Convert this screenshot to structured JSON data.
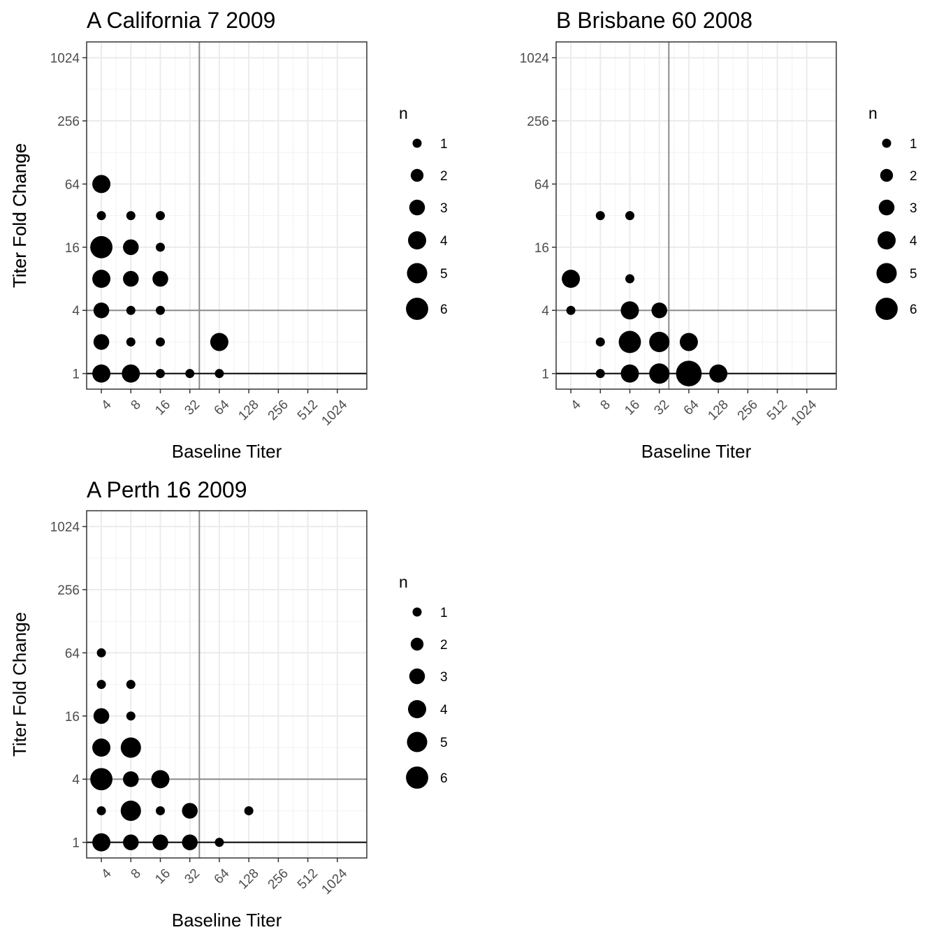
{
  "chart_data": [
    {
      "type": "scatter",
      "title": "A California 7 2009",
      "xlabel": "Baseline Titer",
      "ylabel": "Titer Fold Change",
      "scale": "log2",
      "x_ticks": [
        4,
        8,
        16,
        32,
        64,
        128,
        256,
        512,
        1024
      ],
      "y_ticks": [
        1,
        4,
        16,
        64,
        256,
        1024
      ],
      "xlim": [
        2.83,
        2048
      ],
      "ylim": [
        0.71,
        1448
      ],
      "reference_lines": {
        "vertical_x": 40,
        "horizontal_y": 4,
        "baseline_y": 1
      },
      "grid": true,
      "size_variable": "n",
      "points": [
        {
          "x": 4,
          "y": 64,
          "n": 4
        },
        {
          "x": 4,
          "y": 32,
          "n": 1
        },
        {
          "x": 8,
          "y": 32,
          "n": 1
        },
        {
          "x": 16,
          "y": 32,
          "n": 1
        },
        {
          "x": 4,
          "y": 16,
          "n": 6
        },
        {
          "x": 8,
          "y": 16,
          "n": 3
        },
        {
          "x": 16,
          "y": 16,
          "n": 1
        },
        {
          "x": 4,
          "y": 8,
          "n": 4
        },
        {
          "x": 8,
          "y": 8,
          "n": 3
        },
        {
          "x": 16,
          "y": 8,
          "n": 3
        },
        {
          "x": 4,
          "y": 4,
          "n": 3
        },
        {
          "x": 8,
          "y": 4,
          "n": 1
        },
        {
          "x": 16,
          "y": 4,
          "n": 1
        },
        {
          "x": 4,
          "y": 2,
          "n": 3
        },
        {
          "x": 8,
          "y": 2,
          "n": 1
        },
        {
          "x": 16,
          "y": 2,
          "n": 1
        },
        {
          "x": 64,
          "y": 2,
          "n": 4
        },
        {
          "x": 4,
          "y": 1,
          "n": 4
        },
        {
          "x": 8,
          "y": 1,
          "n": 4
        },
        {
          "x": 16,
          "y": 1,
          "n": 1
        },
        {
          "x": 32,
          "y": 1,
          "n": 1
        },
        {
          "x": 64,
          "y": 1,
          "n": 1
        }
      ]
    },
    {
      "type": "scatter",
      "title": "B Brisbane 60 2008",
      "xlabel": "Baseline Titer",
      "ylabel": "Titer Fold Change",
      "scale": "log2",
      "x_ticks": [
        4,
        8,
        16,
        32,
        64,
        128,
        256,
        512,
        1024
      ],
      "y_ticks": [
        1,
        4,
        16,
        64,
        256,
        1024
      ],
      "xlim": [
        2.83,
        2048
      ],
      "ylim": [
        0.71,
        1448
      ],
      "reference_lines": {
        "vertical_x": 40,
        "horizontal_y": 4,
        "baseline_y": 1
      },
      "grid": true,
      "size_variable": "n",
      "points": [
        {
          "x": 8,
          "y": 32,
          "n": 1
        },
        {
          "x": 16,
          "y": 32,
          "n": 1
        },
        {
          "x": 4,
          "y": 8,
          "n": 4
        },
        {
          "x": 16,
          "y": 8,
          "n": 1
        },
        {
          "x": 4,
          "y": 4,
          "n": 1
        },
        {
          "x": 16,
          "y": 4,
          "n": 4
        },
        {
          "x": 32,
          "y": 4,
          "n": 3
        },
        {
          "x": 8,
          "y": 2,
          "n": 1
        },
        {
          "x": 16,
          "y": 2,
          "n": 6
        },
        {
          "x": 32,
          "y": 2,
          "n": 5
        },
        {
          "x": 64,
          "y": 2,
          "n": 4
        },
        {
          "x": 8,
          "y": 1,
          "n": 1
        },
        {
          "x": 16,
          "y": 1,
          "n": 4
        },
        {
          "x": 32,
          "y": 1,
          "n": 5
        },
        {
          "x": 64,
          "y": 1,
          "n": 8
        },
        {
          "x": 128,
          "y": 1,
          "n": 4
        }
      ]
    },
    {
      "type": "scatter",
      "title": "A Perth 16 2009",
      "xlabel": "Baseline Titer",
      "ylabel": "Titer Fold Change",
      "scale": "log2",
      "x_ticks": [
        4,
        8,
        16,
        32,
        64,
        128,
        256,
        512,
        1024
      ],
      "y_ticks": [
        1,
        4,
        16,
        64,
        256,
        1024
      ],
      "xlim": [
        2.83,
        2048
      ],
      "ylim": [
        0.71,
        1448
      ],
      "reference_lines": {
        "vertical_x": 40,
        "horizontal_y": 4,
        "baseline_y": 1
      },
      "grid": true,
      "size_variable": "n",
      "points": [
        {
          "x": 4,
          "y": 64,
          "n": 1
        },
        {
          "x": 4,
          "y": 32,
          "n": 1
        },
        {
          "x": 8,
          "y": 32,
          "n": 1
        },
        {
          "x": 4,
          "y": 16,
          "n": 3
        },
        {
          "x": 8,
          "y": 16,
          "n": 1
        },
        {
          "x": 4,
          "y": 8,
          "n": 4
        },
        {
          "x": 8,
          "y": 8,
          "n": 5
        },
        {
          "x": 4,
          "y": 4,
          "n": 6
        },
        {
          "x": 8,
          "y": 4,
          "n": 3
        },
        {
          "x": 16,
          "y": 4,
          "n": 4
        },
        {
          "x": 4,
          "y": 2,
          "n": 1
        },
        {
          "x": 8,
          "y": 2,
          "n": 5
        },
        {
          "x": 16,
          "y": 2,
          "n": 1
        },
        {
          "x": 32,
          "y": 2,
          "n": 3
        },
        {
          "x": 128,
          "y": 2,
          "n": 1
        },
        {
          "x": 4,
          "y": 1,
          "n": 4
        },
        {
          "x": 8,
          "y": 1,
          "n": 3
        },
        {
          "x": 16,
          "y": 1,
          "n": 3
        },
        {
          "x": 32,
          "y": 1,
          "n": 3
        },
        {
          "x": 64,
          "y": 1,
          "n": 1
        }
      ]
    }
  ],
  "legend": {
    "title": "n",
    "entries": [
      1,
      2,
      3,
      4,
      5,
      6
    ]
  }
}
